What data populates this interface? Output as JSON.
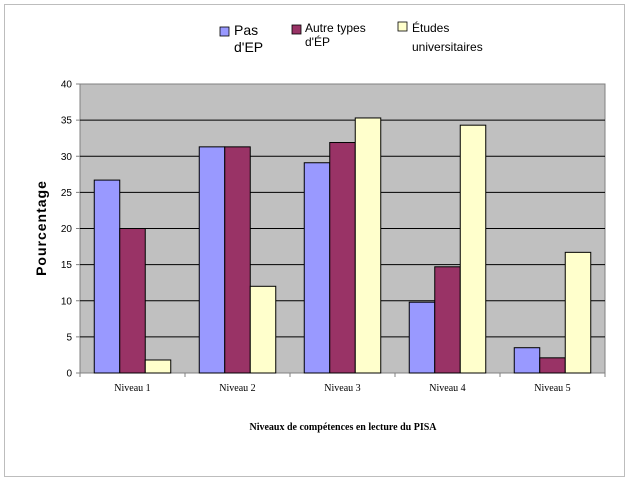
{
  "chart_data": {
    "type": "bar",
    "title": "",
    "xlabel": "Niveaux de compétences en lecture du PISA",
    "ylabel": "Pourcentage",
    "ylim": [
      0,
      40
    ],
    "yticks": [
      "0",
      "5",
      "10",
      "15",
      "20",
      "25",
      "30",
      "35",
      "40"
    ],
    "grid": true,
    "legend_position": "top",
    "plot_background": "#c0c0c0",
    "categories": [
      "Niveau 1",
      "Niveau 2",
      "Niveau 3",
      "Niveau 4",
      "Niveau 5"
    ],
    "series": [
      {
        "name": "Pas d'EP",
        "legend_lines": [
          "Pas",
          "d'EP"
        ],
        "color": "#9999ff",
        "values": [
          26.7,
          31.3,
          29.1,
          9.8,
          3.5
        ]
      },
      {
        "name": "Autre types d'ÉP",
        "legend_lines": [
          "Autre types",
          "d'ÉP"
        ],
        "color": "#993366",
        "values": [
          20.0,
          31.3,
          31.9,
          14.7,
          2.1
        ]
      },
      {
        "name": "Études universitaires",
        "legend_lines": [
          "Études",
          "universitaires"
        ],
        "color": "#ffffcc",
        "values": [
          1.8,
          12.0,
          35.3,
          34.3,
          16.7
        ]
      }
    ]
  }
}
